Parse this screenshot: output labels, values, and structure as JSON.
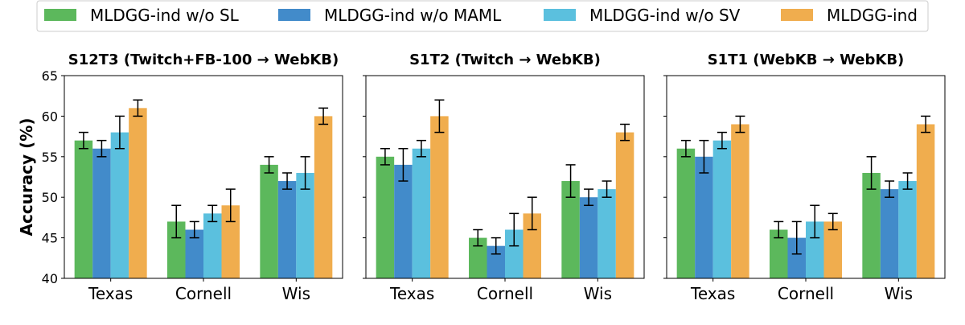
{
  "chart_data": {
    "type": "bar",
    "ylabel": "Accuracy (%)",
    "ylim": [
      40,
      65
    ],
    "yticks": [
      40,
      45,
      50,
      55,
      60,
      65
    ],
    "grid": false,
    "legend_position": "top",
    "series": [
      {
        "name": "MLDGG-ind w/o SL",
        "color": "#5cb85c"
      },
      {
        "name": "MLDGG-ind w/o MAML",
        "color": "#428bca"
      },
      {
        "name": "MLDGG-ind w/o SV",
        "color": "#5bc0de"
      },
      {
        "name": "MLDGG-ind",
        "color": "#f0ad4e"
      }
    ],
    "panels": [
      {
        "title": "S12T3 (Twitch+FB-100 → WebKB)",
        "categories": [
          "Texas",
          "Cornell",
          "Wis"
        ],
        "values": [
          [
            57,
            56,
            58,
            61
          ],
          [
            47,
            46,
            48,
            49
          ],
          [
            54,
            52,
            53,
            60
          ]
        ],
        "errors": [
          [
            1,
            1,
            2,
            1
          ],
          [
            2,
            1,
            1,
            2
          ],
          [
            1,
            1,
            2,
            1
          ]
        ]
      },
      {
        "title": "S1T2 (Twitch → WebKB)",
        "categories": [
          "Texas",
          "Cornell",
          "Wis"
        ],
        "values": [
          [
            55,
            54,
            56,
            60
          ],
          [
            45,
            44,
            46,
            48
          ],
          [
            52,
            50,
            51,
            58
          ]
        ],
        "errors": [
          [
            1,
            2,
            1,
            2
          ],
          [
            1,
            1,
            2,
            2
          ],
          [
            2,
            1,
            1,
            1
          ]
        ]
      },
      {
        "title": "S1T1 (WebKB → WebKB)",
        "categories": [
          "Texas",
          "Cornell",
          "Wis"
        ],
        "values": [
          [
            56,
            55,
            57,
            59
          ],
          [
            46,
            45,
            47,
            47
          ],
          [
            53,
            51,
            52,
            59
          ]
        ],
        "errors": [
          [
            1,
            2,
            1,
            1
          ],
          [
            1,
            2,
            2,
            1
          ],
          [
            2,
            1,
            1,
            1
          ]
        ]
      }
    ]
  }
}
